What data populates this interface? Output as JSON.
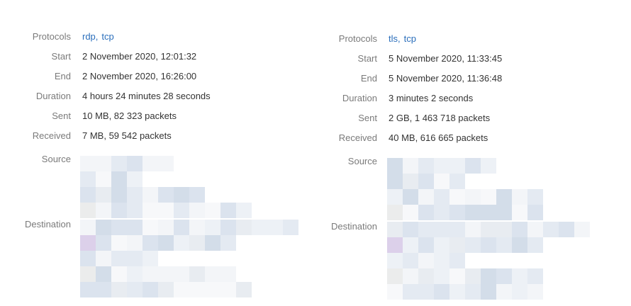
{
  "panels": [
    {
      "protocols_label": "Protocols",
      "protocols": [
        "rdp",
        "tcp"
      ],
      "protocol_separator": ",",
      "fields": [
        {
          "label": "Start",
          "value": "2 November 2020, 12:01:32"
        },
        {
          "label": "End",
          "value": "2 November 2020, 16:26:00"
        },
        {
          "label": "Duration",
          "value": "4 hours 24 minutes 28 seconds"
        },
        {
          "label": "Sent",
          "value": "10 MB, 82 323 packets"
        },
        {
          "label": "Received",
          "value": "7 MB, 59 542 packets"
        }
      ],
      "source_label": "Source",
      "destination_label": "Destination"
    },
    {
      "protocols_label": "Protocols",
      "protocols": [
        "tls",
        "tcp"
      ],
      "protocol_separator": ",",
      "fields": [
        {
          "label": "Start",
          "value": "5 November 2020, 11:33:45"
        },
        {
          "label": "End",
          "value": "5 November 2020, 11:36:48"
        },
        {
          "label": "Duration",
          "value": "3 minutes 2 seconds"
        },
        {
          "label": "Sent",
          "value": "2 GB, 1 463 718 packets"
        },
        {
          "label": "Received",
          "value": "40 MB, 616 665 packets"
        }
      ],
      "source_label": "Source",
      "destination_label": "Destination"
    }
  ]
}
